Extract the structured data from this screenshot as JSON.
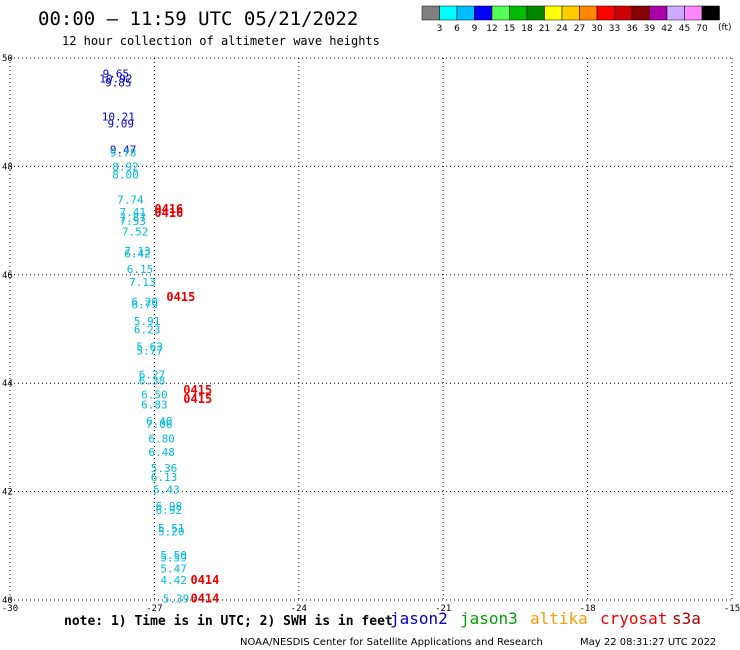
{
  "header": {
    "title": "00:00 – 11:59 UTC 05/21/2022",
    "subtitle": "12 hour collection of altimeter wave heights"
  },
  "colorbar": {
    "colors": [
      "#808080",
      "#00ffff",
      "#00bfff",
      "#0000ff",
      "#55ff55",
      "#00bb00",
      "#008800",
      "#ffff00",
      "#ffcc00",
      "#ff8800",
      "#ff0000",
      "#cc0000",
      "#880000",
      "#aa00aa",
      "#ccaaff",
      "#ff88ff",
      "#000000"
    ],
    "labels": [
      "3",
      "6",
      "9",
      "12",
      "15",
      "18",
      "21",
      "24",
      "27",
      "30",
      "33",
      "36",
      "39",
      "42",
      "45",
      "70"
    ],
    "unit": "(ft)"
  },
  "chart_data": {
    "type": "scatter",
    "title": "12 hour collection of altimeter wave heights",
    "xlim": [
      -30,
      -15
    ],
    "ylim": [
      40,
      50
    ],
    "x_ticks": [
      "-30",
      "-27",
      "-24",
      "-21",
      "-18",
      "-15"
    ],
    "y_ticks": [
      "40",
      "42",
      "44",
      "46",
      "48",
      "50"
    ],
    "grid": true,
    "series": [
      {
        "name": "jason2",
        "color": "#0000cc",
        "points": [
          {
            "x": -27.8,
            "y": 49.71,
            "label": "9.65"
          },
          {
            "x": -27.8,
            "y": 49.62,
            "label": "10.92"
          },
          {
            "x": -27.75,
            "y": 49.55,
            "label": "9.85"
          },
          {
            "x": -27.75,
            "y": 48.92,
            "label": "10.21"
          },
          {
            "x": -27.7,
            "y": 48.79,
            "label": "9.09"
          },
          {
            "x": -27.65,
            "y": 48.31,
            "label": "9.47"
          }
        ]
      },
      {
        "name": "jason3",
        "color": "#00bbdd",
        "points": [
          {
            "x": -27.65,
            "y": 48.26,
            "label": "9.78"
          },
          {
            "x": -27.6,
            "y": 48.0,
            "label": "8.92"
          },
          {
            "x": -27.6,
            "y": 47.85,
            "label": "8.00"
          },
          {
            "x": -27.5,
            "y": 47.39,
            "label": "7.74"
          },
          {
            "x": -27.45,
            "y": 47.16,
            "label": "7.41"
          },
          {
            "x": -27.45,
            "y": 47.06,
            "label": "7.87"
          },
          {
            "x": -27.45,
            "y": 46.99,
            "label": "7.53"
          },
          {
            "x": -27.4,
            "y": 46.8,
            "label": "7.52"
          },
          {
            "x": -27.35,
            "y": 46.44,
            "label": "7.13"
          },
          {
            "x": -27.35,
            "y": 46.39,
            "label": "6.42"
          },
          {
            "x": -27.3,
            "y": 46.11,
            "label": "6.15"
          },
          {
            "x": -27.25,
            "y": 45.87,
            "label": "7.13"
          },
          {
            "x": -27.2,
            "y": 45.51,
            "label": "6.20"
          },
          {
            "x": -27.2,
            "y": 45.45,
            "label": "6.79"
          },
          {
            "x": -27.15,
            "y": 45.15,
            "label": "5.91"
          },
          {
            "x": -27.15,
            "y": 44.99,
            "label": "6.23"
          },
          {
            "x": -27.1,
            "y": 44.68,
            "label": "5.63"
          },
          {
            "x": -27.1,
            "y": 44.6,
            "label": "5.77"
          },
          {
            "x": -27.05,
            "y": 44.16,
            "label": "6.27"
          },
          {
            "x": -27.05,
            "y": 44.05,
            "label": "6.38"
          },
          {
            "x": -27.0,
            "y": 43.79,
            "label": "6.50"
          },
          {
            "x": -27.0,
            "y": 43.61,
            "label": "6.83"
          },
          {
            "x": -26.9,
            "y": 43.3,
            "label": "6.40"
          },
          {
            "x": -26.9,
            "y": 43.25,
            "label": "7.06"
          },
          {
            "x": -26.85,
            "y": 42.98,
            "label": "6.80"
          },
          {
            "x": -26.85,
            "y": 42.73,
            "label": "6.48"
          },
          {
            "x": -26.8,
            "y": 42.44,
            "label": "5.36"
          },
          {
            "x": -26.8,
            "y": 42.27,
            "label": "6.13"
          },
          {
            "x": -26.75,
            "y": 42.04,
            "label": "5.43"
          },
          {
            "x": -26.7,
            "y": 41.73,
            "label": "6.98"
          },
          {
            "x": -26.7,
            "y": 41.66,
            "label": "6.92"
          },
          {
            "x": -26.65,
            "y": 41.33,
            "label": "5.51"
          },
          {
            "x": -26.65,
            "y": 41.26,
            "label": "5.20"
          },
          {
            "x": -26.6,
            "y": 40.83,
            "label": "5.50"
          },
          {
            "x": -26.6,
            "y": 40.78,
            "label": "5.59"
          },
          {
            "x": -26.6,
            "y": 40.58,
            "label": "5.47"
          },
          {
            "x": -26.6,
            "y": 40.37,
            "label": "4.42"
          },
          {
            "x": -26.55,
            "y": 40.03,
            "label": "5.39"
          }
        ]
      },
      {
        "name": "altika",
        "color": "#ff8800",
        "points": []
      },
      {
        "name": "cryosat",
        "color": "#ee0000",
        "points": [
          {
            "x": -26.7,
            "y": 47.21,
            "label": "0416"
          },
          {
            "x": -26.7,
            "y": 47.14,
            "label": "0416"
          },
          {
            "x": -26.45,
            "y": 45.59,
            "label": "0415"
          },
          {
            "x": -26.1,
            "y": 43.87,
            "label": "0415"
          },
          {
            "x": -26.1,
            "y": 43.71,
            "label": "0415"
          },
          {
            "x": -25.95,
            "y": 40.37,
            "label": "0414"
          },
          {
            "x": -25.95,
            "y": 40.03,
            "label": "0414"
          }
        ]
      },
      {
        "name": "s3a",
        "color": "#aa0000",
        "points": []
      }
    ]
  },
  "note": "note: 1) Time is in UTC; 2) SWH is in feet",
  "legend": [
    {
      "name": "jason2",
      "color": "#0000cc"
    },
    {
      "name": "jason3",
      "color": "#00a000"
    },
    {
      "name": "altika",
      "color": "#ff9900"
    },
    {
      "name": "cryosat",
      "color": "#ee0000"
    },
    {
      "name": "s3a",
      "color": "#aa0000"
    }
  ],
  "footer": {
    "credit": "NOAA/NESDIS Center for Satellite Applications and Research",
    "timestamp": "May 22 08:31:27 UTC 2022"
  }
}
